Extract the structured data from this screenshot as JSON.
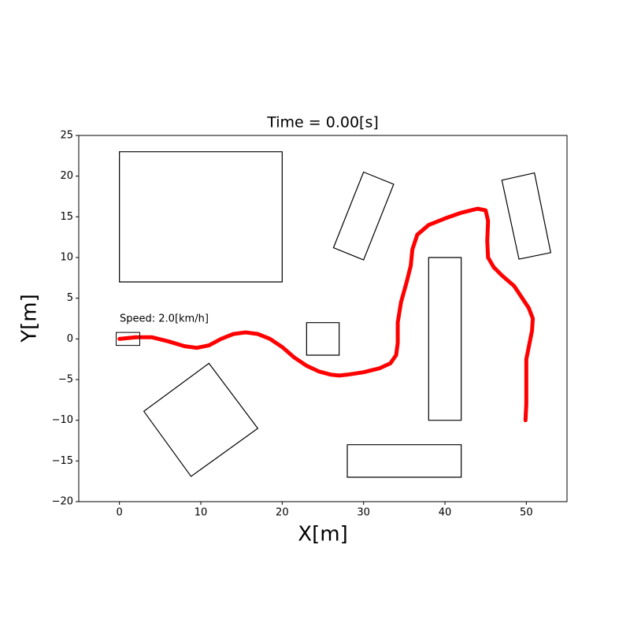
{
  "chart_data": {
    "type": "line",
    "title": "Time = 0.00[s]",
    "x_label": "X[m]",
    "y_label": "Y[m]",
    "annotation": "Speed: 2.0[km/h]",
    "xlim": [
      -5,
      55
    ],
    "ylim": [
      -20,
      25
    ],
    "xticks": [
      0,
      10,
      20,
      30,
      40,
      50
    ],
    "yticks": [
      {
        "value": -20,
        "label": "−20"
      },
      {
        "value": -15,
        "label": "−15"
      },
      {
        "value": -10,
        "label": "−10"
      },
      {
        "value": -5,
        "label": "−5"
      },
      0,
      5,
      10,
      15,
      20,
      25
    ],
    "series": [
      {
        "color": "#ff0000",
        "x": [
          0,
          2,
          4,
          6,
          8,
          9.5,
          11,
          12.5,
          14,
          15.5,
          17,
          18.5,
          20,
          21.5,
          23,
          24.5,
          26,
          27,
          28,
          30,
          32,
          33.3,
          34,
          34.2,
          34.2,
          34.6,
          35.3,
          35.8,
          36,
          36.6,
          38,
          40,
          42,
          44,
          45,
          45.3,
          45.2,
          45.3,
          46,
          47,
          48.5,
          49.5,
          50.3,
          50.8,
          50.7,
          50.3,
          50,
          50,
          50,
          49.9
        ],
        "values": [
          0,
          0.2,
          0.2,
          -0.3,
          -0.9,
          -1.1,
          -0.8,
          0,
          0.6,
          0.8,
          0.6,
          0,
          -1,
          -2.3,
          -3.3,
          -4,
          -4.4,
          -4.5,
          -4.4,
          -4.1,
          -3.6,
          -3,
          -2,
          -0.5,
          2,
          4.5,
          7,
          9,
          11,
          12.8,
          14,
          14.8,
          15.5,
          16,
          15.8,
          14.5,
          12,
          10,
          8.8,
          7.8,
          6.5,
          5,
          3.8,
          2.5,
          1,
          -1,
          -2.5,
          -5,
          -8,
          -10
        ]
      }
    ],
    "obstacles": [
      {
        "x": [
          0,
          20,
          20,
          0
        ],
        "y": [
          7,
          7,
          23,
          23
        ]
      },
      {
        "x": [
          30,
          33.7,
          30,
          26.3
        ],
        "y": [
          20.5,
          19,
          9.7,
          11.2
        ]
      },
      {
        "x": [
          47,
          51,
          53,
          49.1
        ],
        "y": [
          19.5,
          20.4,
          10.6,
          9.8
        ]
      },
      {
        "x": [
          23,
          27,
          27,
          23
        ],
        "y": [
          -2,
          -2,
          2,
          2
        ]
      },
      {
        "x": [
          38,
          42,
          42,
          38
        ],
        "y": [
          -10,
          -10,
          10,
          10
        ]
      },
      {
        "x": [
          28,
          42,
          42,
          28
        ],
        "y": [
          -17,
          -17,
          -13,
          -13
        ]
      },
      {
        "x": [
          11,
          17,
          8.8,
          3
        ],
        "y": [
          -3,
          -11,
          -16.9,
          -8.9
        ]
      }
    ],
    "vehicle": {
      "x": [
        -0.4,
        2.5,
        2.5,
        -0.4
      ],
      "y": [
        -0.8,
        -0.8,
        0.8,
        0.8
      ]
    }
  }
}
